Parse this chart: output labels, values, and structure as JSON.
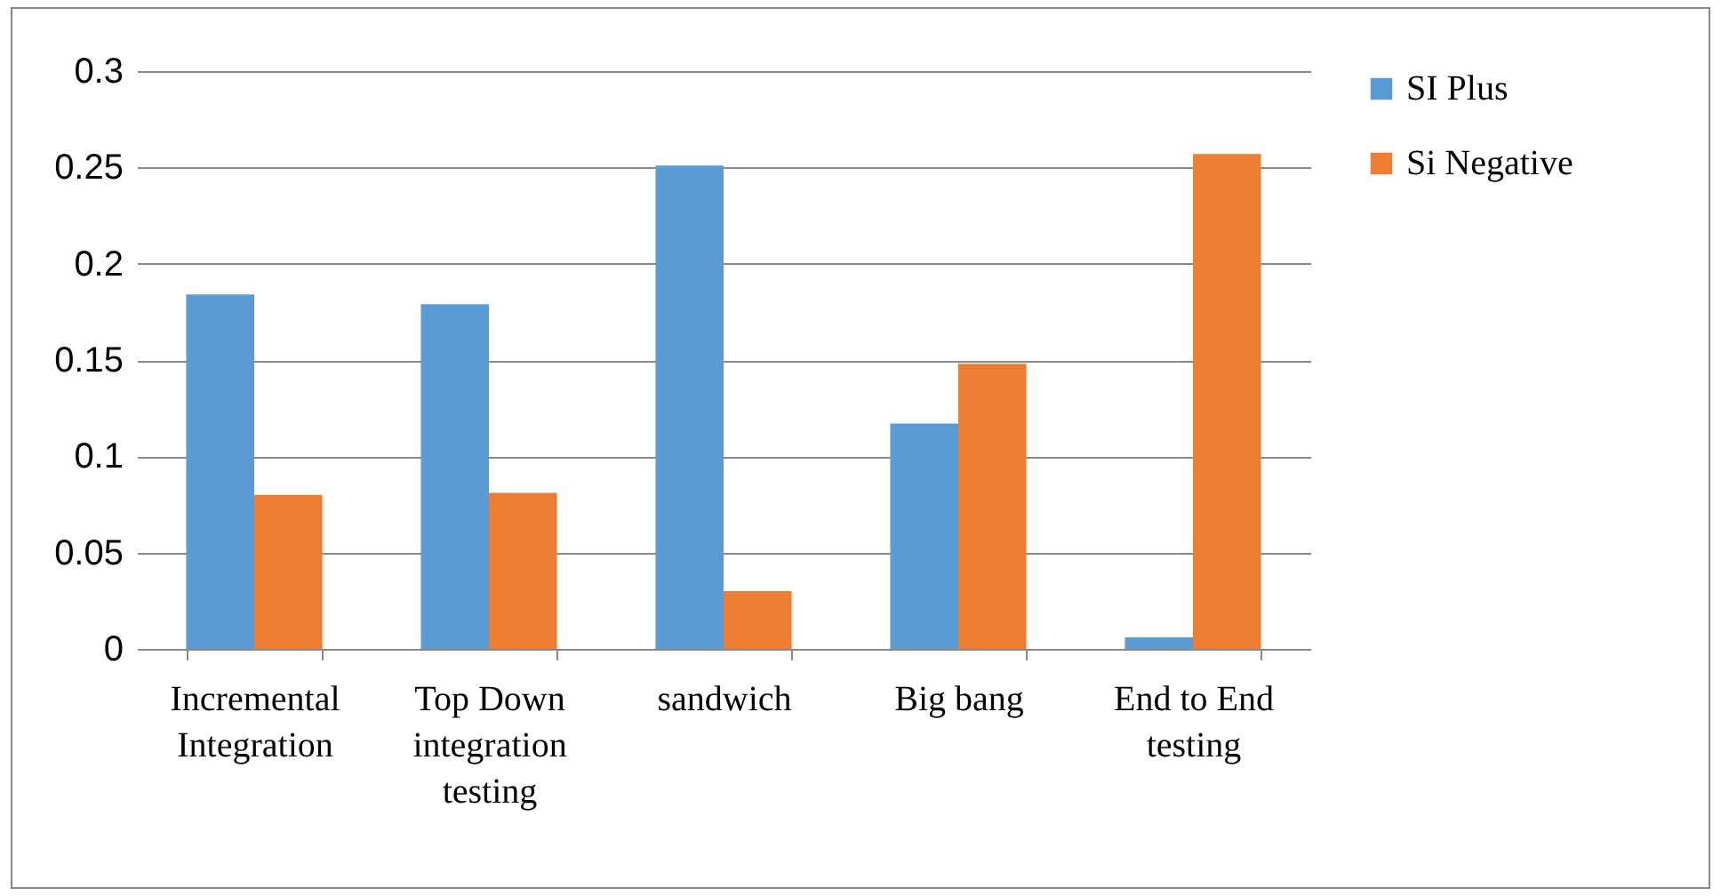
{
  "chart_data": {
    "type": "bar",
    "categories": [
      "Incremental Integration",
      "Top Down integration testing",
      "sandwich",
      "Big bang",
      "End to End testing"
    ],
    "series": [
      {
        "name": "SI Plus",
        "color": "#5b9bd5",
        "values": [
          0.184,
          0.179,
          0.251,
          0.117,
          0.006
        ]
      },
      {
        "name": "Si Negative",
        "color": "#ed7d31",
        "values": [
          0.08,
          0.081,
          0.03,
          0.148,
          0.257
        ]
      }
    ],
    "ylim": [
      0,
      0.3
    ],
    "yticks": [
      0,
      0.05,
      0.1,
      0.15,
      0.2,
      0.25,
      0.3
    ],
    "grid": "y",
    "legend": "right"
  }
}
